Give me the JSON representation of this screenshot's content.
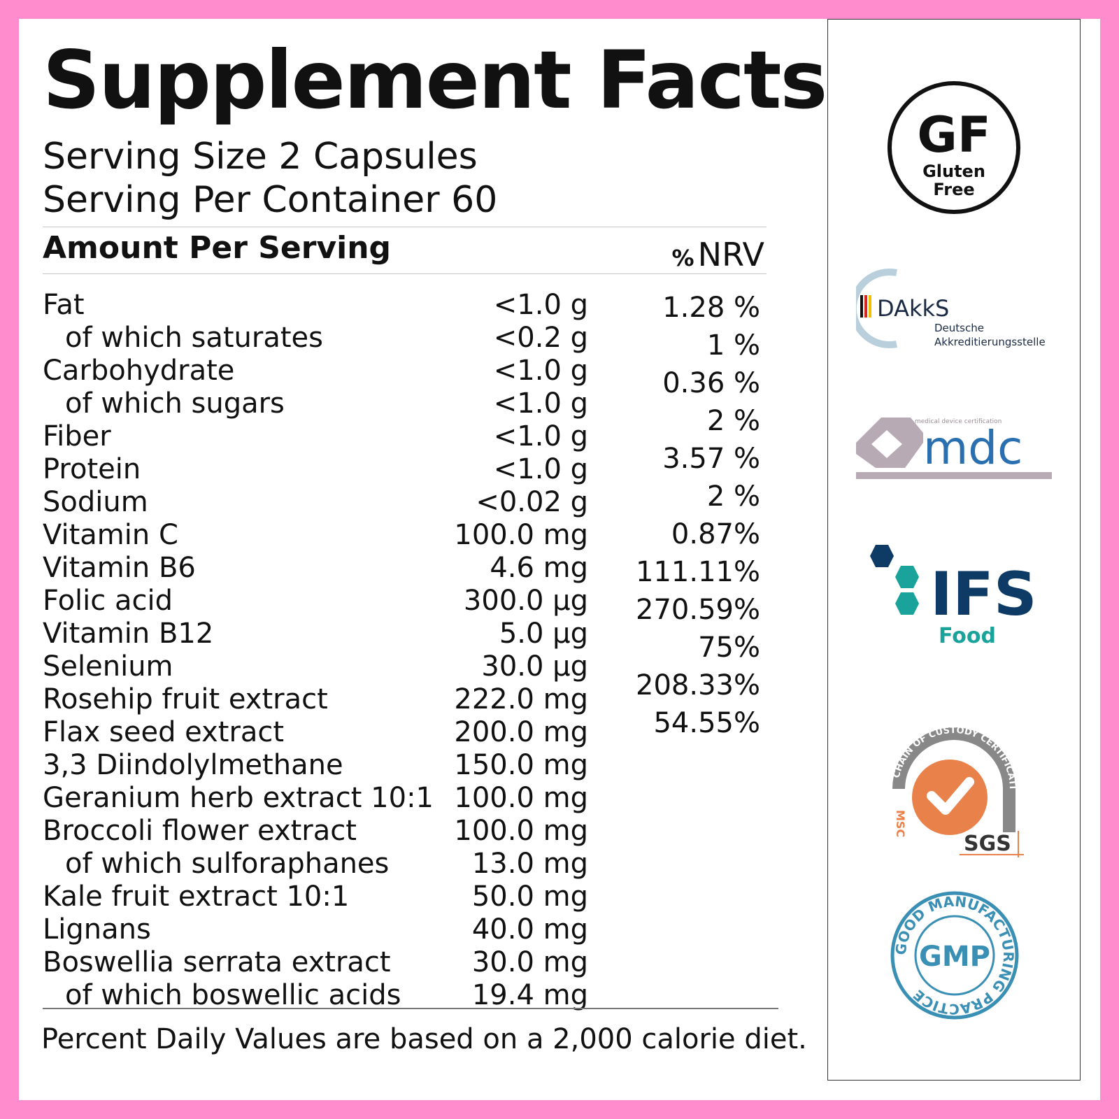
{
  "title": "Supplement Facts",
  "serving_size": "Serving Size 2 Capsules",
  "servings_per_container": "Serving Per Container 60",
  "amount_header": "Amount Per Serving",
  "nrv_header": {
    "percent": "%",
    "label": "NRV"
  },
  "nutrients": [
    {
      "name": "Fat",
      "amount": "<1.0 g",
      "sub": false
    },
    {
      "name": "of which saturates",
      "amount": "<0.2 g",
      "sub": true
    },
    {
      "name": "Carbohydrate",
      "amount": "<1.0 g",
      "sub": false
    },
    {
      "name": "of which sugars",
      "amount": "<1.0 g",
      "sub": true
    },
    {
      "name": "Fiber",
      "amount": "<1.0 g",
      "sub": false
    },
    {
      "name": "Protein",
      "amount": "<1.0 g",
      "sub": false
    },
    {
      "name": "Sodium",
      "amount": "<0.02 g",
      "sub": false
    },
    {
      "name": "Vitamin C",
      "amount": "100.0 mg",
      "sub": false
    },
    {
      "name": "Vitamin B6",
      "amount": "4.6 mg",
      "sub": false
    },
    {
      "name": "Folic acid",
      "amount": "300.0 µg",
      "sub": false
    },
    {
      "name": "Vitamin B12",
      "amount": "5.0 µg",
      "sub": false
    },
    {
      "name": "Selenium",
      "amount": "30.0 µg",
      "sub": false
    },
    {
      "name": "Rosehip fruit extract",
      "amount": "222.0 mg",
      "sub": false
    },
    {
      "name": "Flax seed extract",
      "amount": "200.0 mg",
      "sub": false
    },
    {
      "name": "3,3 Diindolylmethane",
      "amount": "150.0 mg",
      "sub": false
    },
    {
      "name": "Geranium herb extract 10:1",
      "amount": "100.0 mg",
      "sub": false
    },
    {
      "name": "Broccoli flower extract",
      "amount": "100.0 mg",
      "sub": false
    },
    {
      "name": "of which sulforaphanes",
      "amount": "13.0 mg",
      "sub": true
    },
    {
      "name": "Kale fruit extract 10:1",
      "amount": "50.0 mg",
      "sub": false
    },
    {
      "name": "Lignans",
      "amount": "40.0 mg",
      "sub": false
    },
    {
      "name": "Boswellia serrata extract",
      "amount": "30.0 mg",
      "sub": false
    },
    {
      "name": "of which boswellic acids",
      "amount": "19.4 mg",
      "sub": true
    }
  ],
  "nrv_values": [
    "1.28 %",
    "1 %",
    "0.36 %",
    "2 %",
    "3.57 %",
    "2 %",
    "0.87%",
    "111.11%",
    "270.59%",
    "75%",
    "208.33%",
    "54.55%"
  ],
  "footer": "Percent Daily Values are based on a 2,000 calorie diet.",
  "certifications": {
    "gluten_free": {
      "big": "GF",
      "line1": "Gluten",
      "line2": "Free"
    },
    "dakks": {
      "name": "DAkkS",
      "line1": "Deutsche",
      "line2": "Akkreditierungsstelle"
    },
    "mdc": {
      "caption": "medical device certification",
      "name": "mdc"
    },
    "ifs": {
      "name": "IFS",
      "sub": "Food"
    },
    "sgs": {
      "arc": "CHAIN OF CUSTODY CERTIFICATION",
      "side": "MSC",
      "name": "SGS"
    },
    "gmp": {
      "name": "GMP",
      "ring": "GOOD MANUFACTURING PRACTICE"
    }
  },
  "colors": {
    "border": "#ff8ccc",
    "ifs_navy": "#0d3b66",
    "ifs_teal": "#1aa39a",
    "sgs_orange": "#e8824a",
    "gmp_blue": "#3a8fb5",
    "mdc_blue": "#2a6fb0",
    "mdc_grey": "#b8aab4"
  }
}
